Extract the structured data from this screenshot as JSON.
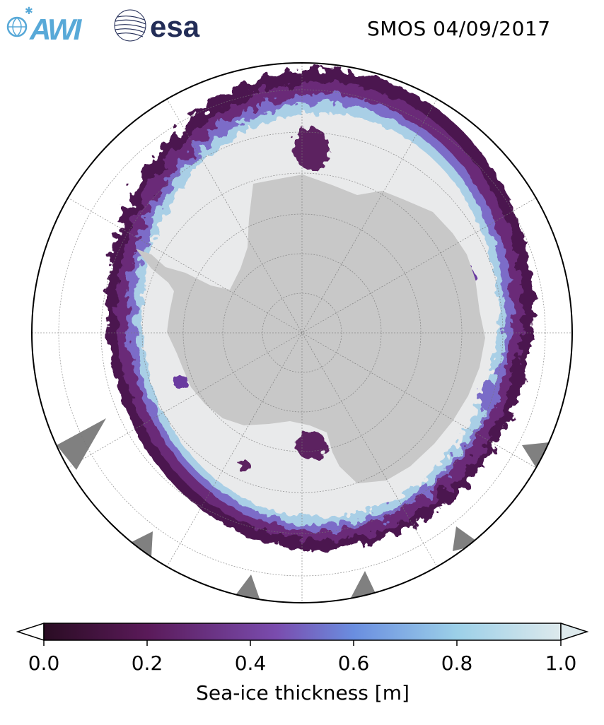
{
  "header": {
    "logo_awi": "AWI",
    "logo_esa": "esa",
    "title": "SMOS 04/09/2017"
  },
  "colors": {
    "land": "#c8c8c8",
    "thick_ice": "#e9eaeb",
    "ocean": "#ffffff",
    "data_gap": "#808080",
    "awi_blue": "#58a9d8",
    "esa_navy": "#232d57"
  },
  "colorbar": {
    "label": "Sea-ice thickness [m]",
    "ticks": [
      "0.0",
      "0.2",
      "0.4",
      "0.6",
      "0.8",
      "1.0"
    ],
    "range": [
      0.0,
      1.0
    ],
    "colormap_stops": [
      "#2a0c23",
      "#5a1a59",
      "#7a4cae",
      "#6a8ee0",
      "#9cd0e8",
      "#dde9ec"
    ],
    "extend": "both"
  }
}
